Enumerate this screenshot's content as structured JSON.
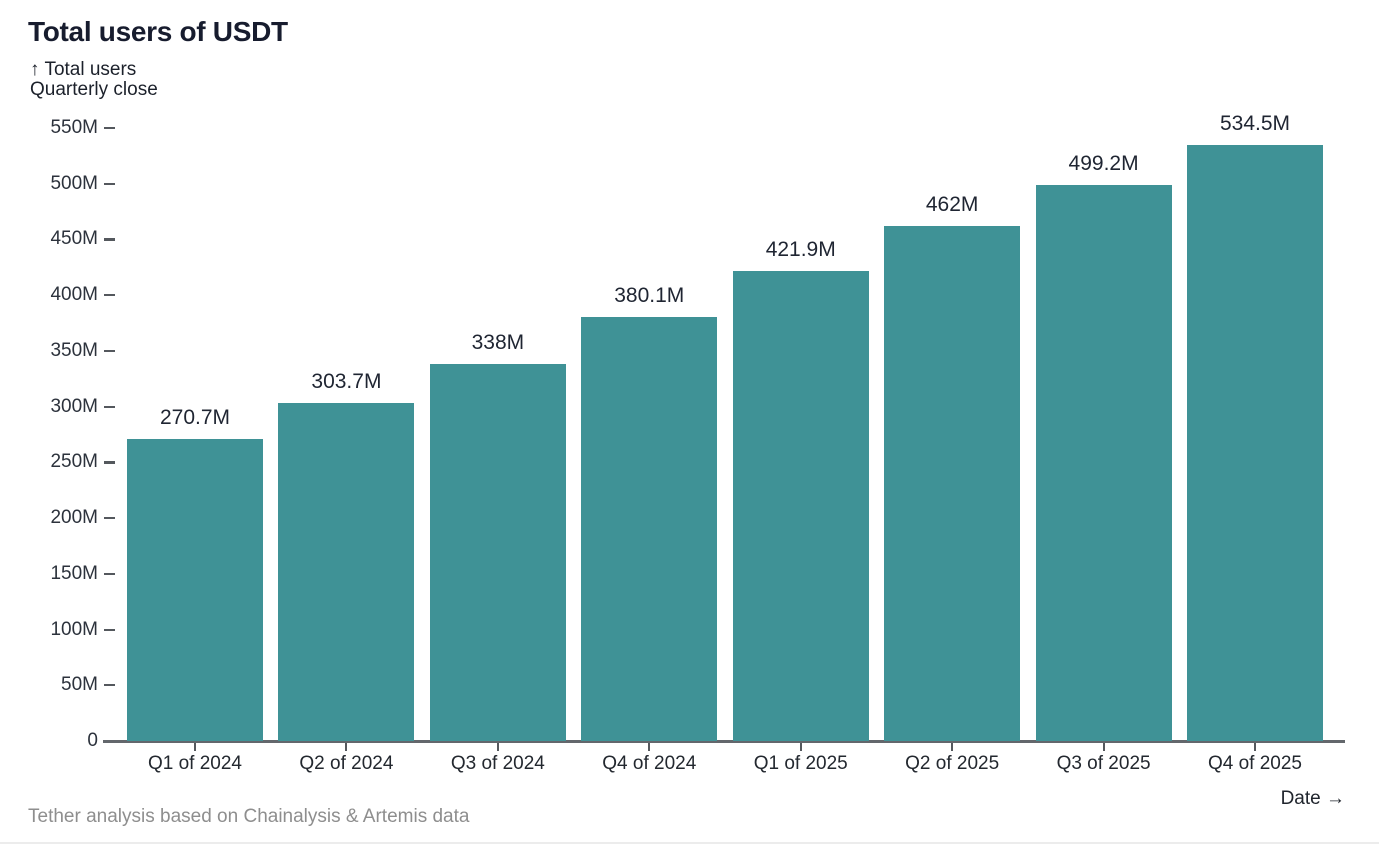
{
  "header": {
    "title": "Total users of USDT",
    "up_arrow": "↑",
    "y_axis_title_line1": "Total users",
    "y_axis_title_line2": "Quarterly close"
  },
  "footer": {
    "x_axis_title": "Date",
    "right_arrow": "→",
    "source_note": "Tether analysis based on Chainalysis & Artemis data"
  },
  "chart_data": {
    "type": "bar",
    "title": "Total users of USDT",
    "ylabel": "Total users — Quarterly close",
    "xlabel": "Date",
    "categories": [
      "Q1 of 2024",
      "Q2 of 2024",
      "Q3 of 2024",
      "Q4 of 2024",
      "Q1 of 2025",
      "Q2 of 2025",
      "Q3 of 2025",
      "Q4 of 2025"
    ],
    "values": [
      270.7,
      303.7,
      338,
      380.1,
      421.9,
      462,
      499.2,
      534.5
    ],
    "value_labels": [
      "270.7M",
      "303.7M",
      "338M",
      "380.1M",
      "421.9M",
      "462M",
      "499.2M",
      "534.5M"
    ],
    "unit": "millions of users",
    "ylim": [
      0,
      550
    ],
    "y_ticks": [
      0,
      50,
      100,
      150,
      200,
      250,
      300,
      350,
      400,
      450,
      500,
      550
    ],
    "y_tick_labels": [
      "0",
      "50M",
      "100M",
      "150M",
      "200M",
      "250M",
      "300M",
      "350M",
      "400M",
      "450M",
      "500M",
      "550M"
    ],
    "bar_color": "#3F9296",
    "grid": false,
    "legend": "none"
  }
}
